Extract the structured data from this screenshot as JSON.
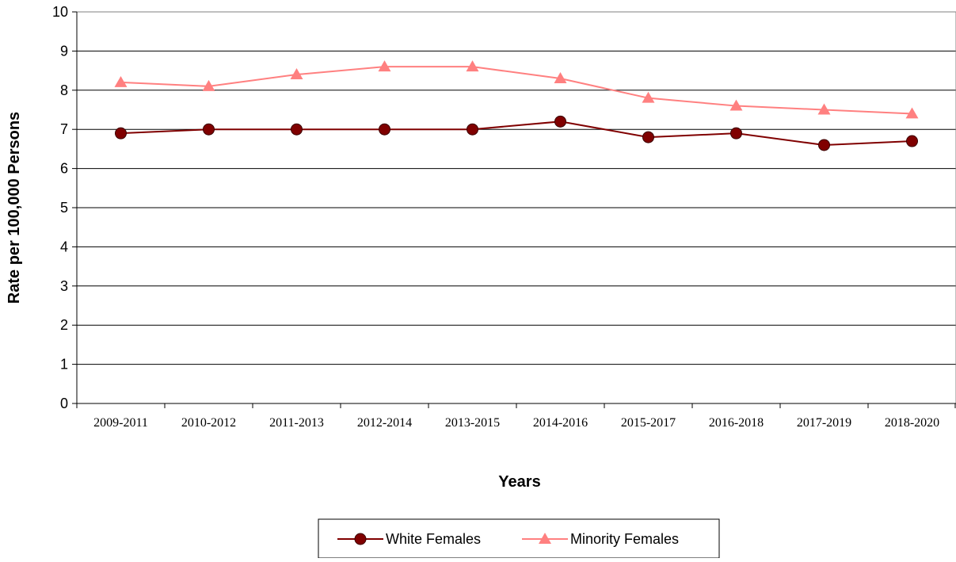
{
  "chart_data": {
    "type": "line",
    "title": "",
    "xlabel": "Years",
    "ylabel": "Rate per 100,000 Persons",
    "categories": [
      "2009-2011",
      "2010-2012",
      "2011-2013",
      "2012-2014",
      "2013-2015",
      "2014-2016",
      "2015-2017",
      "2016-2018",
      "2017-2019",
      "2018-2020"
    ],
    "ylim": [
      0,
      10
    ],
    "yticks": [
      0,
      1,
      2,
      3,
      4,
      5,
      6,
      7,
      8,
      9,
      10
    ],
    "grid": true,
    "legend_position": "bottom",
    "series": [
      {
        "name": "White Females",
        "values": [
          6.9,
          7.0,
          7.0,
          7.0,
          7.0,
          7.2,
          6.8,
          6.9,
          6.6,
          6.7
        ],
        "color": "#800000",
        "marker": "circle"
      },
      {
        "name": "Minority Females",
        "values": [
          8.2,
          8.1,
          8.4,
          8.6,
          8.6,
          8.3,
          7.8,
          7.6,
          7.5,
          7.4
        ],
        "color": "#ff8080",
        "marker": "triangle"
      }
    ]
  }
}
